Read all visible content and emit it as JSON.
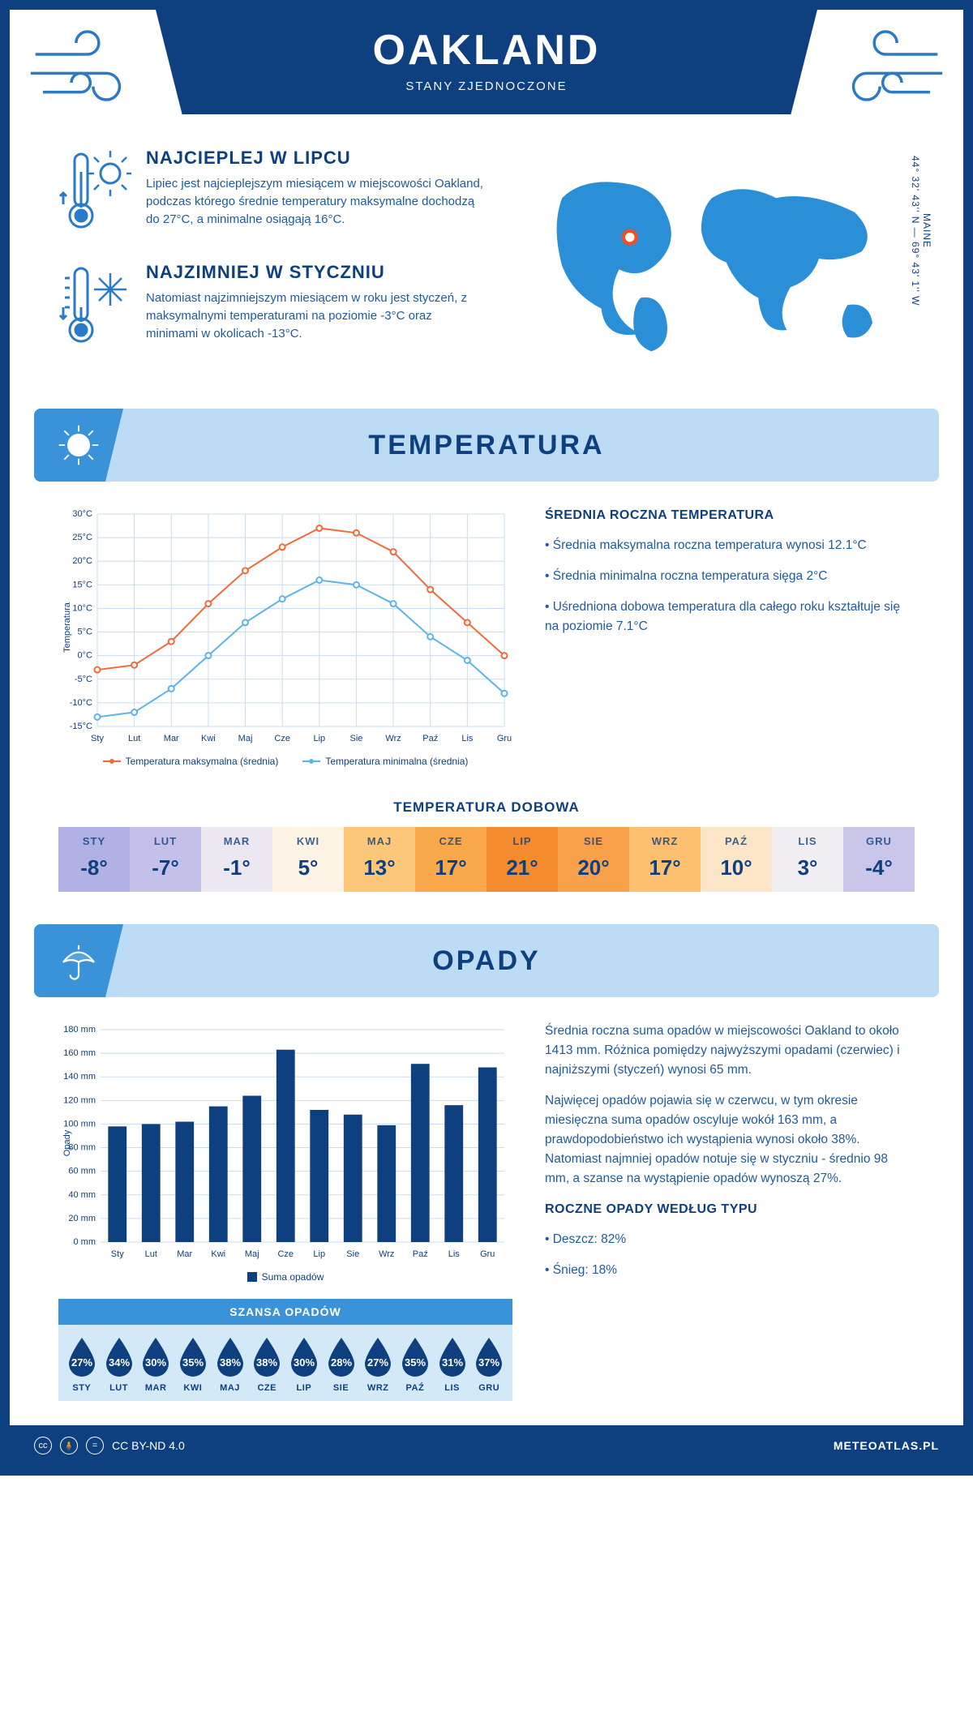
{
  "header": {
    "city": "OAKLAND",
    "country": "STANY ZJEDNOCZONE",
    "coords_region": "MAINE",
    "coords": "44° 32' 43'' N — 69° 43' 1'' W"
  },
  "facts": {
    "hot": {
      "title": "NAJCIEPLEJ W LIPCU",
      "text": "Lipiec jest najcieplejszym miesiącem w miejscowości Oakland, podczas którego średnie temperatury maksymalne dochodzą do 27°C, a minimalne osiągają 16°C."
    },
    "cold": {
      "title": "NAJZIMNIEJ W STYCZNIU",
      "text": "Natomiast najzimniejszym miesiącem w roku jest styczeń, z maksymalnymi temperaturami na poziomie -3°C oraz minimami w okolicach -13°C."
    }
  },
  "temp_section": {
    "title": "TEMPERATURA",
    "chart": {
      "type": "line",
      "months": [
        "Sty",
        "Lut",
        "Mar",
        "Kwi",
        "Maj",
        "Cze",
        "Lip",
        "Sie",
        "Wrz",
        "Paź",
        "Lis",
        "Gru"
      ],
      "series": [
        {
          "name": "Temperatura maksymalna (średnia)",
          "color": "#f26a3b",
          "values": [
            -3,
            -2,
            3,
            11,
            18,
            23,
            27,
            26,
            22,
            14,
            7,
            0
          ]
        },
        {
          "name": "Temperatura minimalna (średnia)",
          "color": "#5fb3e6",
          "values": [
            -13,
            -12,
            -7,
            0,
            7,
            12,
            16,
            15,
            11,
            4,
            -1,
            -8
          ]
        }
      ],
      "ylim": [
        -15,
        30
      ],
      "ytick_step": 5,
      "yunit": "°C",
      "ylabel": "Temperatura",
      "grid_color": "#c9ddef",
      "background": "#ffffff",
      "marker": "circle",
      "marker_size": 3.5,
      "line_width": 2
    },
    "side": {
      "title": "ŚREDNIA ROCZNA TEMPERATURA",
      "bullets": [
        "• Średnia maksymalna roczna temperatura wynosi 12.1°C",
        "• Średnia minimalna roczna temperatura sięga 2°C",
        "• Uśredniona dobowa temperatura dla całego roku kształtuje się na poziomie 7.1°C"
      ]
    },
    "daily": {
      "title": "TEMPERATURA DOBOWA",
      "months": [
        "STY",
        "LUT",
        "MAR",
        "KWI",
        "MAJ",
        "CZE",
        "LIP",
        "SIE",
        "WRZ",
        "PAŹ",
        "LIS",
        "GRU"
      ],
      "values": [
        "-8°",
        "-7°",
        "-1°",
        "5°",
        "13°",
        "17°",
        "21°",
        "20°",
        "17°",
        "10°",
        "3°",
        "-4°"
      ],
      "colors": [
        "#b1b1e6",
        "#c3c0ea",
        "#ece7f1",
        "#fdf4e6",
        "#fdc77a",
        "#f9a84c",
        "#f58b2f",
        "#f8a04a",
        "#fcc070",
        "#fde6c8",
        "#f1eef3",
        "#c9c6ea"
      ]
    }
  },
  "precip_section": {
    "title": "OPADY",
    "chart": {
      "type": "bar",
      "months": [
        "Sty",
        "Lut",
        "Mar",
        "Kwi",
        "Maj",
        "Cze",
        "Lip",
        "Sie",
        "Wrz",
        "Paź",
        "Lis",
        "Gru"
      ],
      "values": [
        98,
        100,
        102,
        115,
        124,
        163,
        112,
        108,
        99,
        151,
        116,
        148
      ],
      "bar_color": "#0e3f7e",
      "legend": "Suma opadów",
      "ylim": [
        0,
        180
      ],
      "ytick_step": 20,
      "yunit": " mm",
      "ylabel": "Opady",
      "grid_color": "#c9ddef",
      "bar_width": 0.55
    },
    "side": {
      "p1": "Średnia roczna suma opadów w miejscowości Oakland to około 1413 mm. Różnica pomiędzy najwyższymi opadami (czerwiec) i najniższymi (styczeń) wynosi 65 mm.",
      "p2": "Najwięcej opadów pojawia się w czerwcu, w tym okresie miesięczna suma opadów oscyluje wokół 163 mm, a prawdopodobieństwo ich wystąpienia wynosi około 38%. Natomiast najmniej opadów notuje się w styczniu - średnio 98 mm, a szanse na wystąpienie opadów wynoszą 27%.",
      "types_title": "ROCZNE OPADY WEDŁUG TYPU",
      "types": [
        "• Deszcz: 82%",
        "• Śnieg: 18%"
      ]
    },
    "chance": {
      "title": "SZANSA OPADÓW",
      "months": [
        "STY",
        "LUT",
        "MAR",
        "KWI",
        "MAJ",
        "CZE",
        "LIP",
        "SIE",
        "WRZ",
        "PAŹ",
        "LIS",
        "GRU"
      ],
      "values": [
        "27%",
        "34%",
        "30%",
        "35%",
        "38%",
        "38%",
        "30%",
        "28%",
        "27%",
        "35%",
        "31%",
        "37%"
      ],
      "drop_color": "#0e3f7e"
    }
  },
  "footer": {
    "license": "CC BY-ND 4.0",
    "site": "METEOATLAS.PL"
  },
  "colors": {
    "primary": "#0e3f7e",
    "accent": "#2b7ac7",
    "band": "#bcdcf5",
    "tab": "#3a93d9"
  }
}
